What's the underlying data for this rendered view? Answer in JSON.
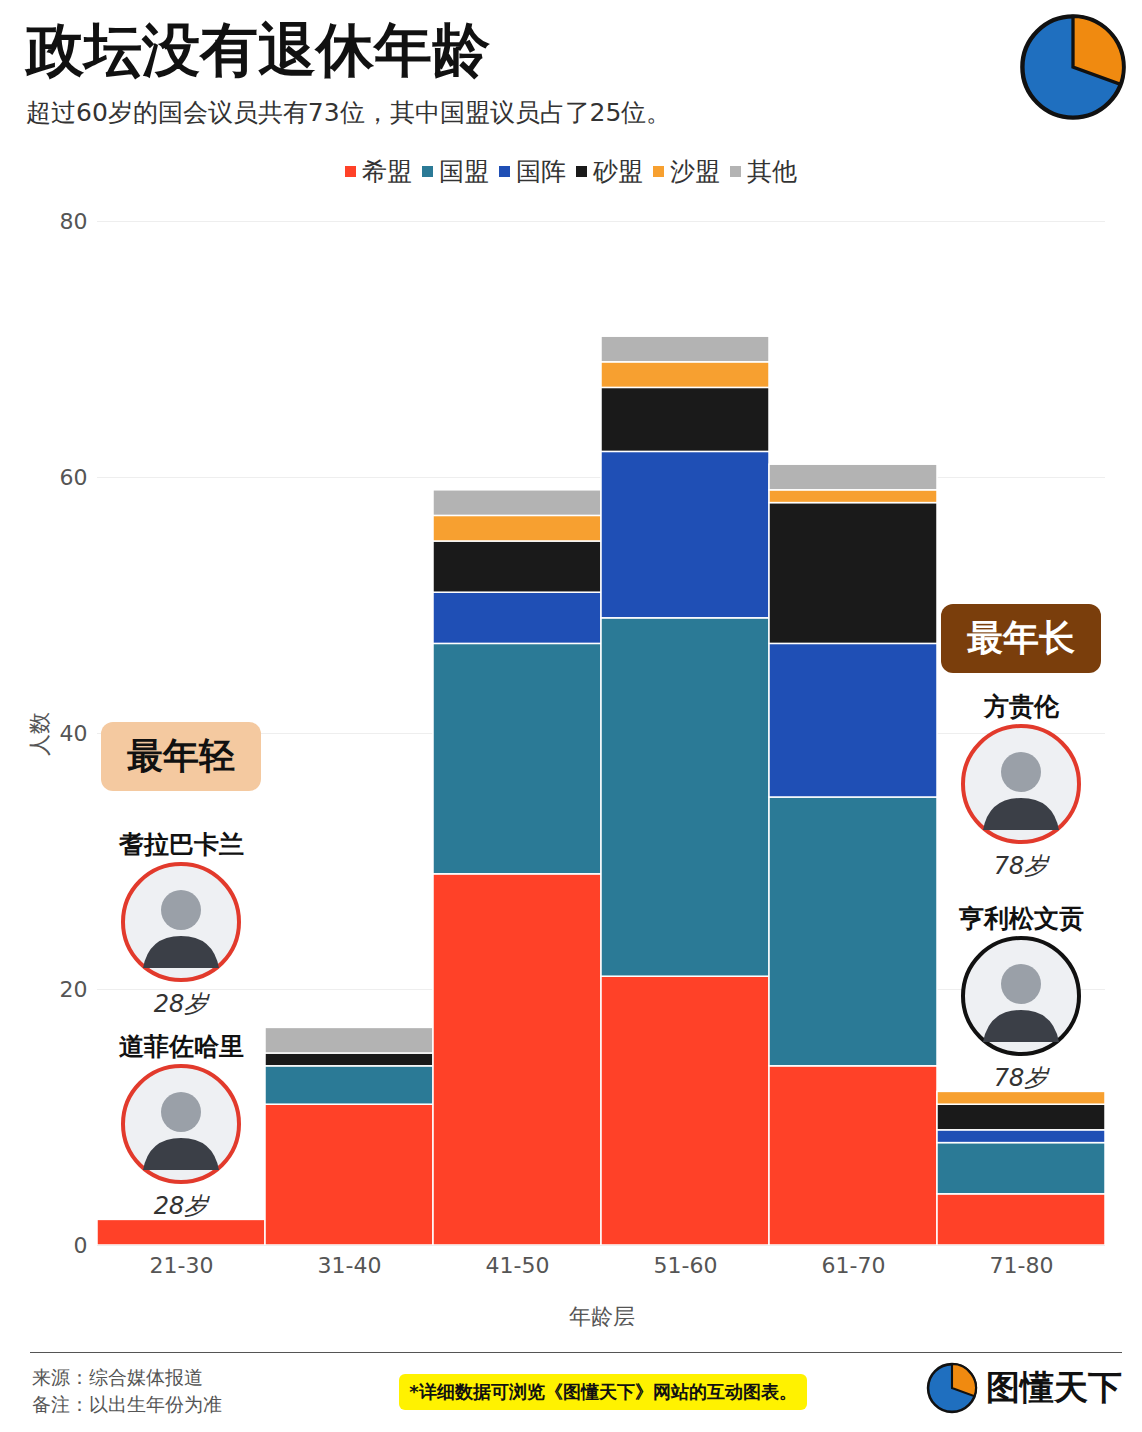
{
  "chart_data": {
    "type": "bar",
    "title": "政坛没有退休年龄",
    "subtitle": "超过60岁的国会议员共有73位，其中国盟议员占了25位。",
    "x_label": "年龄层",
    "y_label": "人数",
    "categories": [
      "21-30",
      "31-40",
      "41-50",
      "51-60",
      "61-70",
      "71-80"
    ],
    "series": [
      {
        "name": "希盟",
        "color": "#ff4128",
        "values": [
          2,
          11,
          29,
          21,
          14,
          4
        ]
      },
      {
        "name": "国盟",
        "color": "#2b7a96",
        "values": [
          0,
          3,
          18,
          28,
          21,
          4
        ]
      },
      {
        "name": "国阵",
        "color": "#1f4fb5",
        "values": [
          0,
          0,
          4,
          13,
          12,
          1
        ]
      },
      {
        "name": "砂盟",
        "color": "#1a1a1a",
        "values": [
          0,
          1,
          4,
          5,
          11,
          2
        ]
      },
      {
        "name": "沙盟",
        "color": "#f7a030",
        "values": [
          0,
          0,
          2,
          2,
          1,
          1
        ]
      },
      {
        "name": "其他",
        "color": "#b3b3b3",
        "values": [
          0,
          2,
          2,
          2,
          2,
          0
        ]
      }
    ],
    "ylim": [
      0,
      80
    ],
    "yticks": [
      0,
      20,
      40,
      60,
      80
    ],
    "grid": true,
    "stacked": true,
    "legend": "top",
    "annotations": [
      {
        "label": "最年轻",
        "category": "21-30",
        "people": [
          {
            "name": "耆拉巴卡兰",
            "age": "28岁"
          },
          {
            "name": "道菲佐哈里",
            "age": "28岁"
          }
        ]
      },
      {
        "label": "最年长",
        "category": "71-80",
        "people": [
          {
            "name": "方贵伦",
            "age": "78岁"
          },
          {
            "name": "亨利松文贡",
            "age": "78岁"
          }
        ]
      }
    ],
    "source": "来源：综合媒体报道",
    "note": "备注：以出生年份为准",
    "promo": "*详细数据可浏览《图懂天下》网站的互动图表。",
    "brand": "图懂天下"
  }
}
